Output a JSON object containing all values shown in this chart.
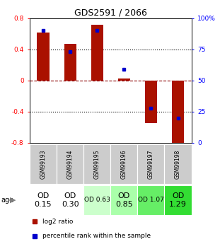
{
  "title": "GDS2591 / 2066",
  "samples": [
    "GSM99193",
    "GSM99194",
    "GSM99195",
    "GSM99196",
    "GSM99197",
    "GSM99198"
  ],
  "log2_ratio": [
    0.62,
    0.47,
    0.72,
    0.03,
    -0.55,
    -0.93
  ],
  "percentile_rank": [
    90,
    73,
    90,
    59,
    28,
    20
  ],
  "ylim_log2": [
    -0.8,
    0.8
  ],
  "bar_color": "#aa1100",
  "dot_color": "#0000cc",
  "age_labels": [
    "OD\n0.15",
    "OD\n0.30",
    "OD 0.63",
    "OD\n0.85",
    "OD 1.07",
    "OD\n1.29"
  ],
  "age_font_sizes": [
    8,
    8,
    6.5,
    8,
    6.5,
    8
  ],
  "age_bg_colors": [
    "#ffffff",
    "#ffffff",
    "#ccffcc",
    "#aaffaa",
    "#66ee66",
    "#33dd33"
  ],
  "sample_bg_color": "#cccccc",
  "grid_yticks_log2": [
    -0.8,
    -0.4,
    0.0,
    0.4,
    0.8
  ],
  "grid_yticks_pct": [
    0,
    25,
    50,
    75,
    100
  ],
  "legend_log2": "log2 ratio",
  "legend_pct": "percentile rank within the sample"
}
